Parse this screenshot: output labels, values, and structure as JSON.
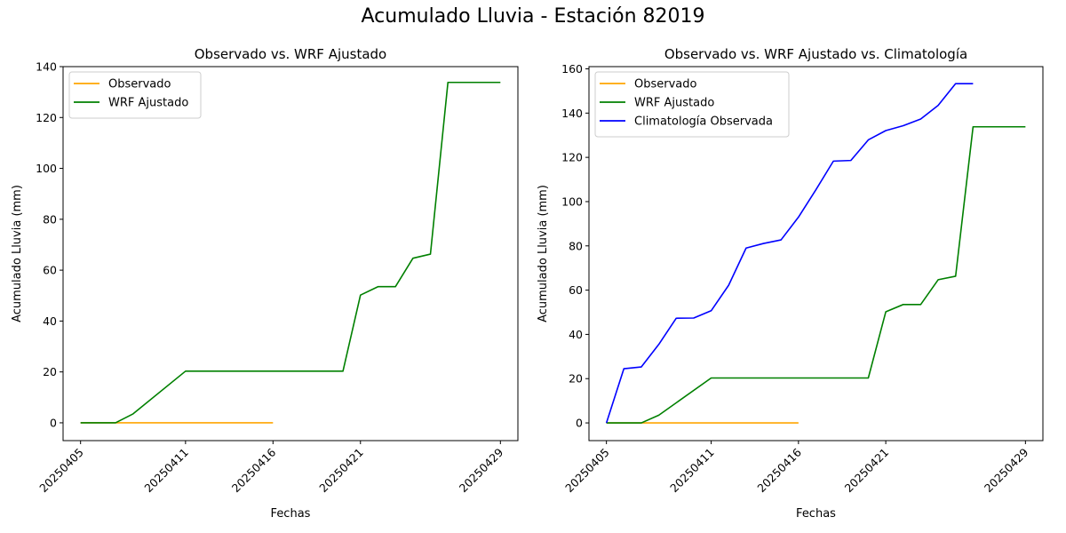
{
  "figure": {
    "suptitle": "Acumulado Lluvia - Estación 82019"
  },
  "chart_data": [
    {
      "type": "line",
      "title": "Observado vs. WRF Ajustado",
      "xlabel": "Fechas",
      "ylabel": "Acumulado Lluvia (mm)",
      "xlim": [
        "20250404",
        "20250430"
      ],
      "ylim": [
        -7,
        140
      ],
      "x_ticks": [
        "20250405",
        "20250411",
        "20250416",
        "20250421",
        "20250429"
      ],
      "y_ticks": [
        0,
        20,
        40,
        60,
        80,
        100,
        120,
        140
      ],
      "grid": false,
      "legend": "top-left",
      "series": [
        {
          "name": "Observado",
          "color": "#ffa500",
          "x": [
            "20250405",
            "20250406",
            "20250407",
            "20250408",
            "20250409",
            "20250410",
            "20250411",
            "20250412",
            "20250413",
            "20250414",
            "20250415",
            "20250416"
          ],
          "y": [
            0,
            0,
            0,
            0,
            0,
            0,
            0,
            0,
            0,
            0,
            0,
            0
          ]
        },
        {
          "name": "WRF Ajustado",
          "color": "#008000",
          "x": [
            "20250405",
            "20250407",
            "20250408",
            "20250411",
            "20250420",
            "20250421",
            "20250422",
            "20250423",
            "20250424",
            "20250425",
            "20250426",
            "20250429"
          ],
          "y": [
            0,
            0,
            3.5,
            20.3,
            20.3,
            50.2,
            53.5,
            53.5,
            64.7,
            66.3,
            133.8,
            133.8
          ]
        }
      ]
    },
    {
      "type": "line",
      "title": "Observado vs. WRF Ajustado vs. Climatología",
      "xlabel": "Fechas",
      "ylabel": "Acumulado Lluvia (mm)",
      "xlim": [
        "20250404",
        "20250430"
      ],
      "ylim": [
        -8,
        161
      ],
      "x_ticks": [
        "20250405",
        "20250411",
        "20250416",
        "20250421",
        "20250429"
      ],
      "y_ticks": [
        0,
        20,
        40,
        60,
        80,
        100,
        120,
        140,
        160
      ],
      "grid": false,
      "legend": "top-left",
      "series": [
        {
          "name": "Observado",
          "color": "#ffa500",
          "x": [
            "20250405",
            "20250406",
            "20250407",
            "20250408",
            "20250409",
            "20250410",
            "20250411",
            "20250412",
            "20250413",
            "20250414",
            "20250415",
            "20250416"
          ],
          "y": [
            0,
            0,
            0,
            0,
            0,
            0,
            0,
            0,
            0,
            0,
            0,
            0
          ]
        },
        {
          "name": "WRF Ajustado",
          "color": "#008000",
          "x": [
            "20250405",
            "20250407",
            "20250408",
            "20250411",
            "20250420",
            "20250421",
            "20250422",
            "20250423",
            "20250424",
            "20250425",
            "20250426",
            "20250429"
          ],
          "y": [
            0,
            0,
            3.5,
            20.3,
            20.3,
            50.2,
            53.5,
            53.5,
            64.7,
            66.3,
            133.8,
            133.8
          ]
        },
        {
          "name": "Climatología Observada",
          "color": "#0000ff",
          "x": [
            "20250405",
            "20250406",
            "20250407",
            "20250408",
            "20250409",
            "20250410",
            "20250411",
            "20250412",
            "20250413",
            "20250414",
            "20250415",
            "20250416",
            "20250417",
            "20250418",
            "20250419",
            "20250420",
            "20250421",
            "20250422",
            "20250423",
            "20250424",
            "20250425",
            "20250426"
          ],
          "y": [
            0,
            24.5,
            25.3,
            35.5,
            47.3,
            47.4,
            50.7,
            62.2,
            79.0,
            81.1,
            82.7,
            93.0,
            105.4,
            118.3,
            118.6,
            127.9,
            132.1,
            134.3,
            137.3,
            143.5,
            153.3,
            153.3
          ]
        }
      ]
    }
  ]
}
